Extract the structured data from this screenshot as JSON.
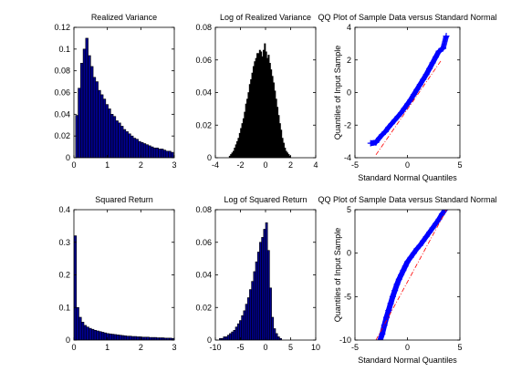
{
  "chart_data": [
    {
      "type": "bar",
      "title": "Realized Variance",
      "xlabel": "",
      "ylabel": "",
      "xlim": [
        0,
        3
      ],
      "ylim": [
        0,
        0.12
      ],
      "xticks": [
        "0",
        "1",
        "2",
        "3"
      ],
      "yticks": [
        "0",
        "0.02",
        "0.04",
        "0.06",
        "0.08",
        "0.1",
        "0.12"
      ],
      "bar_fill": "#00008f",
      "bar_edge": "#000000",
      "bin_start": 0.05,
      "bin_width": 0.075,
      "values": [
        0.039,
        0.064,
        0.087,
        0.1,
        0.11,
        0.094,
        0.084,
        0.074,
        0.07,
        0.062,
        0.058,
        0.054,
        0.049,
        0.045,
        0.04,
        0.038,
        0.034,
        0.032,
        0.029,
        0.026,
        0.024,
        0.022,
        0.02,
        0.018,
        0.017,
        0.015,
        0.014,
        0.013,
        0.012,
        0.011,
        0.01,
        0.009,
        0.009,
        0.008,
        0.008,
        0.007,
        0.006,
        0.006,
        0.005
      ]
    },
    {
      "type": "bar",
      "title": "Log of Realized Variance",
      "xlabel": "",
      "ylabel": "",
      "xlim": [
        -4,
        4
      ],
      "ylim": [
        0,
        0.08
      ],
      "xticks": [
        "-4",
        "-2",
        "0",
        "2",
        "4"
      ],
      "yticks": [
        "0",
        "0.02",
        "0.04",
        "0.06",
        "0.08"
      ],
      "bar_fill": "#000000",
      "bar_edge": "#000000",
      "bin_start": -3.0,
      "bin_width": 0.1,
      "values": [
        0.0,
        0.001,
        0.002,
        0.003,
        0.004,
        0.006,
        0.008,
        0.01,
        0.012,
        0.015,
        0.018,
        0.021,
        0.024,
        0.028,
        0.033,
        0.036,
        0.04,
        0.045,
        0.048,
        0.052,
        0.056,
        0.059,
        0.061,
        0.064,
        0.064,
        0.066,
        0.065,
        0.062,
        0.066,
        0.07,
        0.065,
        0.061,
        0.063,
        0.058,
        0.054,
        0.05,
        0.046,
        0.041,
        0.036,
        0.031,
        0.026,
        0.021,
        0.017,
        0.012,
        0.009,
        0.006,
        0.004,
        0.003,
        0.002,
        0.001
      ]
    },
    {
      "type": "scatter",
      "title": "QQ Plot of Sample Data versus Standard Normal",
      "xlabel": "Standard Normal Quantiles",
      "ylabel": "Quantiles of Input Sample",
      "xlim": [
        -5,
        5
      ],
      "ylim": [
        -4,
        5
      ],
      "xticks": [
        "-5",
        "0",
        "5"
      ],
      "yticks": [
        "-4",
        "-2",
        "0",
        "2",
        "4"
      ],
      "marker_color": "#0000ff",
      "ref_line_color": "#ff0000",
      "ref_line": {
        "x": [
          -3,
          3.2
        ],
        "y": [
          -3.8,
          2.7
        ]
      },
      "x": [
        -3.5,
        -3.0,
        -2.7,
        -2.4,
        -2.1,
        -1.8,
        -1.5,
        -1.2,
        -0.9,
        -0.6,
        -0.3,
        0.0,
        0.3,
        0.6,
        0.9,
        1.2,
        1.5,
        1.8,
        2.1,
        2.4,
        2.7,
        3.0,
        3.4,
        3.7
      ],
      "y": [
        -3.0,
        -2.95,
        -2.65,
        -2.4,
        -2.2,
        -1.9,
        -1.65,
        -1.4,
        -1.15,
        -0.9,
        -0.6,
        -0.3,
        0.0,
        0.35,
        0.7,
        1.05,
        1.4,
        1.75,
        2.15,
        2.55,
        2.95,
        3.35,
        3.55,
        4.4
      ]
    },
    {
      "type": "bar",
      "title": "Squared Return",
      "xlabel": "",
      "ylabel": "",
      "xlim": [
        0,
        3
      ],
      "ylim": [
        0,
        0.4
      ],
      "xticks": [
        "0",
        "1",
        "2",
        "3"
      ],
      "yticks": [
        "0",
        "0.1",
        "0.2",
        "0.3",
        "0.4"
      ],
      "bar_fill": "#00008f",
      "bar_edge": "#000000",
      "bin_start": 0.0,
      "bin_width": 0.075,
      "values": [
        0.32,
        0.1,
        0.07,
        0.055,
        0.045,
        0.04,
        0.036,
        0.033,
        0.03,
        0.028,
        0.026,
        0.024,
        0.022,
        0.02,
        0.019,
        0.018,
        0.017,
        0.016,
        0.015,
        0.014,
        0.013,
        0.012,
        0.012,
        0.011,
        0.011,
        0.01,
        0.01,
        0.009,
        0.009,
        0.009,
        0.008,
        0.008,
        0.008,
        0.007,
        0.007,
        0.007,
        0.006,
        0.006,
        0.006,
        0.005
      ]
    },
    {
      "type": "bar",
      "title": "Log of Squared Return",
      "xlabel": "",
      "ylabel": "",
      "xlim": [
        -10,
        10
      ],
      "ylim": [
        0,
        0.08
      ],
      "xticks": [
        "-10",
        "-5",
        "0",
        "5",
        "10"
      ],
      "yticks": [
        "0",
        "0.02",
        "0.04",
        "0.06",
        "0.08"
      ],
      "bar_fill": "#00008f",
      "bar_edge": "#000000",
      "bin_start": -10.0,
      "bin_width": 0.4,
      "values": [
        0.0,
        0.0,
        0.001,
        0.001,
        0.002,
        0.002,
        0.003,
        0.004,
        0.005,
        0.006,
        0.008,
        0.01,
        0.012,
        0.015,
        0.018,
        0.022,
        0.026,
        0.031,
        0.036,
        0.042,
        0.048,
        0.054,
        0.06,
        0.063,
        0.068,
        0.072,
        0.055,
        0.032,
        0.014,
        0.007,
        0.004,
        0.002,
        0.001
      ]
    },
    {
      "type": "scatter",
      "title": "QQ Plot of Sample Data versus Standard Normal",
      "xlabel": "Standard Normal Quantiles",
      "ylabel": "Quantiles of Input Sample",
      "xlim": [
        -5,
        5
      ],
      "ylim": [
        -10,
        5
      ],
      "xticks": [
        "-5",
        "0",
        "5"
      ],
      "yticks": [
        "-10",
        "-5",
        "0",
        "5"
      ],
      "marker_color": "#0000ff",
      "ref_line_color": "#ff0000",
      "ref_line": {
        "x": [
          -3,
          4.0
        ],
        "y": [
          -10,
          5.6
        ]
      },
      "x": [
        -2.6,
        -2.4,
        -2.2,
        -2.0,
        -1.8,
        -1.6,
        -1.4,
        -1.2,
        -1.0,
        -0.8,
        -0.6,
        -0.4,
        -0.2,
        0.0,
        0.3,
        0.6,
        0.9,
        1.2,
        1.5,
        1.8,
        2.1,
        2.4,
        2.7,
        3.0,
        3.3,
        3.6
      ],
      "y": [
        -10.0,
        -9.3,
        -8.3,
        -7.4,
        -6.6,
        -5.8,
        -5.0,
        -4.3,
        -3.6,
        -3.0,
        -2.5,
        -2.0,
        -1.5,
        -1.0,
        -0.5,
        0.0,
        0.5,
        0.9,
        1.4,
        1.9,
        2.4,
        2.9,
        3.4,
        3.9,
        4.5,
        5.0
      ]
    }
  ]
}
